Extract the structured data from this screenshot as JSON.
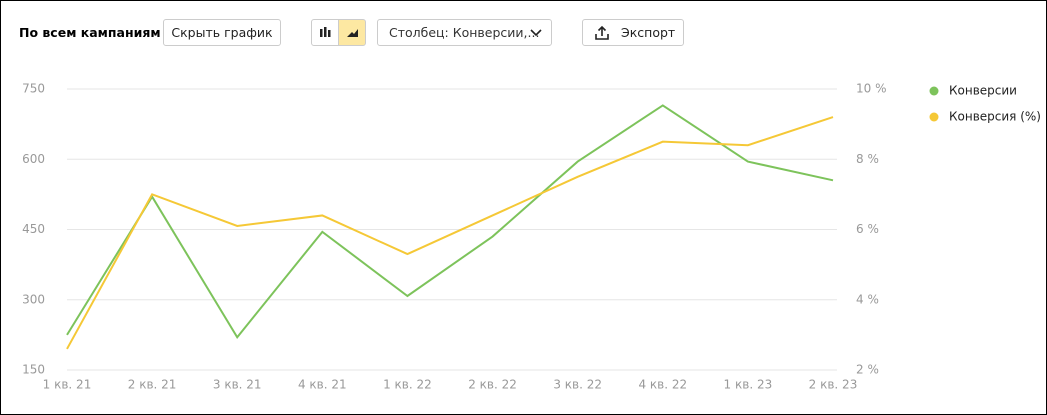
{
  "toolbar": {
    "title": "По всем кампаниям",
    "hide_chart": "Скрыть график",
    "column_select": "Столбец: Конверсии,...",
    "export": "Экспорт"
  },
  "chart_data": {
    "type": "line",
    "categories": [
      "1 кв. 21",
      "2 кв. 21",
      "3 кв. 21",
      "4 кв. 21",
      "1 кв. 22",
      "2 кв. 22",
      "3 кв. 22",
      "4 кв. 22",
      "1 кв. 23",
      "2 кв. 23"
    ],
    "series": [
      {
        "name": "Конверсии",
        "color": "#7dc35b",
        "values": [
          225,
          520,
          220,
          445,
          308,
          435,
          595,
          715,
          595,
          555
        ]
      },
      {
        "name": "Конверсия (%)",
        "color": "#f5c836",
        "axis": "y2",
        "values": [
          2.6,
          7.0,
          6.1,
          6.4,
          5.3,
          6.4,
          7.5,
          8.5,
          8.4,
          9.2
        ]
      }
    ],
    "ylim": [
      150,
      750
    ],
    "yticks": [
      150,
      300,
      450,
      600,
      750
    ],
    "y2lim": [
      2,
      10
    ],
    "y2ticks": [
      {
        "value": 2,
        "label": "2 %"
      },
      {
        "value": 4,
        "label": "4 %"
      },
      {
        "value": 6,
        "label": "6 %"
      },
      {
        "value": 8,
        "label": "8 %"
      },
      {
        "value": 10,
        "label": "10 %"
      }
    ],
    "grid": true,
    "legend": "right"
  }
}
